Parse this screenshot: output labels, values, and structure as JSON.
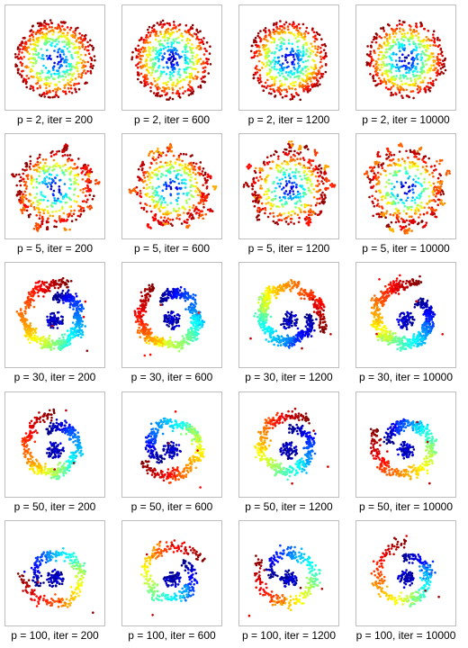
{
  "chart_data": [
    {
      "type": "scatter",
      "caption": "p = 2, iter = 200",
      "perplexity": 2,
      "iterations": 200,
      "pattern": "disk",
      "grid": false
    },
    {
      "type": "scatter",
      "caption": "p = 2, iter = 600",
      "perplexity": 2,
      "iterations": 600,
      "pattern": "disk",
      "grid": false
    },
    {
      "type": "scatter",
      "caption": "p = 2, iter = 1200",
      "perplexity": 2,
      "iterations": 1200,
      "pattern": "disk",
      "grid": false
    },
    {
      "type": "scatter",
      "caption": "p = 2, iter = 10000",
      "perplexity": 2,
      "iterations": 10000,
      "pattern": "disk",
      "grid": false
    },
    {
      "type": "scatter",
      "caption": "p = 5, iter = 200",
      "perplexity": 5,
      "iterations": 200,
      "pattern": "ring",
      "grid": false
    },
    {
      "type": "scatter",
      "caption": "p = 5, iter = 600",
      "perplexity": 5,
      "iterations": 600,
      "pattern": "ring",
      "grid": false
    },
    {
      "type": "scatter",
      "caption": "p = 5, iter = 1200",
      "perplexity": 5,
      "iterations": 1200,
      "pattern": "ring",
      "grid": false
    },
    {
      "type": "scatter",
      "caption": "p = 5, iter = 10000",
      "perplexity": 5,
      "iterations": 10000,
      "pattern": "ring",
      "grid": false
    },
    {
      "type": "scatter",
      "caption": "p = 30, iter = 200",
      "perplexity": 30,
      "iterations": 200,
      "pattern": "fragments",
      "grid": false
    },
    {
      "type": "scatter",
      "caption": "p = 30, iter = 600",
      "perplexity": 30,
      "iterations": 600,
      "pattern": "fragments",
      "grid": false
    },
    {
      "type": "scatter",
      "caption": "p = 30, iter = 1200",
      "perplexity": 30,
      "iterations": 1200,
      "pattern": "fragments",
      "grid": false
    },
    {
      "type": "scatter",
      "caption": "p = 30, iter = 10000",
      "perplexity": 30,
      "iterations": 10000,
      "pattern": "fragments",
      "grid": false
    },
    {
      "type": "scatter",
      "caption": "p = 50, iter = 200",
      "perplexity": 50,
      "iterations": 200,
      "pattern": "arcs",
      "grid": false
    },
    {
      "type": "scatter",
      "caption": "p = 50, iter = 600",
      "perplexity": 50,
      "iterations": 600,
      "pattern": "arcs",
      "grid": false
    },
    {
      "type": "scatter",
      "caption": "p = 50, iter = 1200",
      "perplexity": 50,
      "iterations": 1200,
      "pattern": "arcs",
      "grid": false
    },
    {
      "type": "scatter",
      "caption": "p = 50, iter = 10000",
      "perplexity": 50,
      "iterations": 10000,
      "pattern": "arcs",
      "grid": false
    },
    {
      "type": "scatter",
      "caption": "p = 100, iter = 200",
      "perplexity": 100,
      "iterations": 200,
      "pattern": "spiral",
      "grid": false
    },
    {
      "type": "scatter",
      "caption": "p = 100, iter = 600",
      "perplexity": 100,
      "iterations": 600,
      "pattern": "spiral",
      "grid": false
    },
    {
      "type": "scatter",
      "caption": "p = 100, iter = 1200",
      "perplexity": 100,
      "iterations": 1200,
      "pattern": "spiral",
      "grid": false
    },
    {
      "type": "scatter",
      "caption": "p = 100, iter = 10000",
      "perplexity": 100,
      "iterations": 10000,
      "pattern": "spiral",
      "grid": false
    }
  ],
  "colormap": "jet",
  "colors": {
    "frame": "#bdbdbd",
    "background": "#ffffff"
  }
}
